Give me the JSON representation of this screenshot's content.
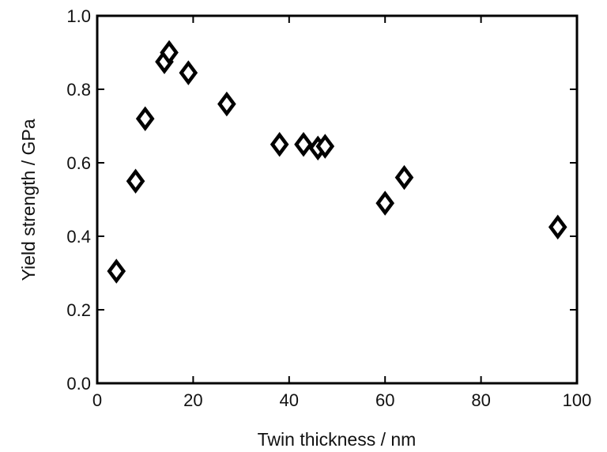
{
  "chart_data": {
    "type": "scatter",
    "title": "",
    "xlabel": "Twin thickness / nm",
    "ylabel": "Yield strength / GPa",
    "xlim": [
      0,
      100
    ],
    "ylim": [
      0.0,
      1.0
    ],
    "xticks": [
      0,
      20,
      40,
      60,
      80,
      100
    ],
    "yticks": [
      0.0,
      0.2,
      0.4,
      0.6,
      0.8,
      1.0
    ],
    "xtick_labels": [
      "0",
      "20",
      "40",
      "60",
      "80",
      "100"
    ],
    "ytick_labels": [
      "0.0",
      "0.2",
      "0.4",
      "0.6",
      "0.8",
      "1.0"
    ],
    "grid": false,
    "marker": "open-diamond",
    "marker_color": "#000000",
    "points": [
      {
        "x": 4,
        "y": 0.305
      },
      {
        "x": 8,
        "y": 0.55
      },
      {
        "x": 10,
        "y": 0.72
      },
      {
        "x": 14,
        "y": 0.875
      },
      {
        "x": 15,
        "y": 0.9
      },
      {
        "x": 19,
        "y": 0.845
      },
      {
        "x": 27,
        "y": 0.76
      },
      {
        "x": 38,
        "y": 0.65
      },
      {
        "x": 43,
        "y": 0.65
      },
      {
        "x": 46,
        "y": 0.64
      },
      {
        "x": 47.5,
        "y": 0.645
      },
      {
        "x": 60,
        "y": 0.49
      },
      {
        "x": 64,
        "y": 0.56
      },
      {
        "x": 96,
        "y": 0.425
      }
    ]
  }
}
